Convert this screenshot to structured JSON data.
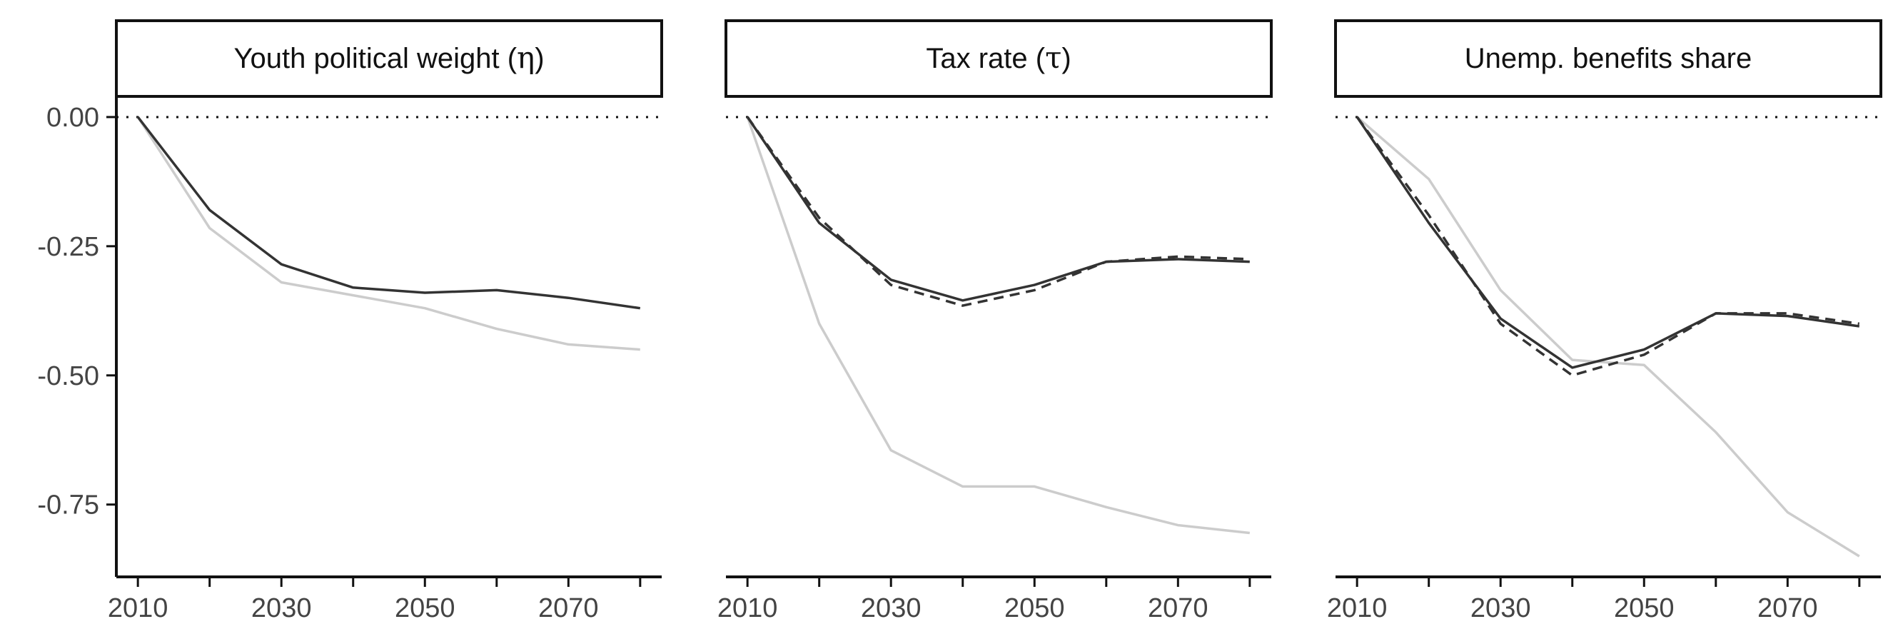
{
  "chart_data": [
    {
      "type": "line",
      "title": "Youth political weight (",
      "title_symbol": "η",
      "title_close": ")",
      "x": [
        2010,
        2020,
        2030,
        2040,
        2050,
        2060,
        2070,
        2080
      ],
      "xticks": [
        "2010",
        "2030",
        "2050",
        "2070"
      ],
      "ylim": [
        -0.89,
        0.04
      ],
      "yticks": [
        "0.00",
        "-0.25",
        "-0.50",
        "-0.75"
      ],
      "series": [
        {
          "style": "solid-dark",
          "color": "#333333",
          "values": [
            0,
            -0.18,
            -0.285,
            -0.33,
            -0.34,
            -0.335,
            -0.35,
            -0.37
          ]
        },
        {
          "style": "solid-light",
          "color": "#cccccc",
          "values": [
            0,
            -0.215,
            -0.32,
            -0.345,
            -0.37,
            -0.41,
            -0.44,
            -0.45
          ]
        }
      ]
    },
    {
      "type": "line",
      "title": "Tax rate (",
      "title_symbol": "τ",
      "title_close": ")",
      "x": [
        2010,
        2020,
        2030,
        2040,
        2050,
        2060,
        2070,
        2080
      ],
      "xticks": [
        "2010",
        "2030",
        "2050",
        "2070"
      ],
      "ylim": [
        -0.89,
        0.04
      ],
      "yticks": [],
      "series": [
        {
          "style": "solid-dark",
          "color": "#333333",
          "values": [
            0,
            -0.205,
            -0.315,
            -0.355,
            -0.325,
            -0.28,
            -0.275,
            -0.28
          ]
        },
        {
          "style": "dashed",
          "color": "#333333",
          "values": [
            0,
            -0.195,
            -0.325,
            -0.365,
            -0.335,
            -0.28,
            -0.27,
            -0.275
          ]
        },
        {
          "style": "solid-light",
          "color": "#cccccc",
          "values": [
            0,
            -0.4,
            -0.645,
            -0.715,
            -0.715,
            -0.755,
            -0.79,
            -0.805
          ]
        }
      ]
    },
    {
      "type": "line",
      "title": "Unemp. benefits share",
      "title_symbol": "",
      "title_close": "",
      "x": [
        2010,
        2020,
        2030,
        2040,
        2050,
        2060,
        2070,
        2080
      ],
      "xticks": [
        "2010",
        "2030",
        "2050",
        "2070"
      ],
      "ylim": [
        -0.89,
        0.04
      ],
      "yticks": [],
      "series": [
        {
          "style": "solid-dark",
          "color": "#333333",
          "values": [
            0,
            -0.205,
            -0.39,
            -0.485,
            -0.45,
            -0.38,
            -0.385,
            -0.405
          ]
        },
        {
          "style": "dashed",
          "color": "#333333",
          "values": [
            0,
            -0.19,
            -0.4,
            -0.5,
            -0.46,
            -0.38,
            -0.38,
            -0.4
          ]
        },
        {
          "style": "solid-light",
          "color": "#cccccc",
          "values": [
            0,
            -0.12,
            -0.335,
            -0.47,
            -0.48,
            -0.61,
            -0.765,
            -0.85
          ]
        }
      ]
    }
  ]
}
